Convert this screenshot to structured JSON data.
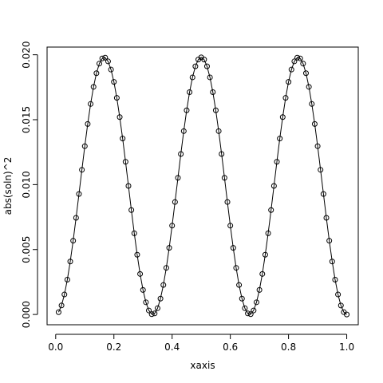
{
  "chart_data": {
    "type": "line-points",
    "x_label": "xaxis",
    "y_label": "abs(soln)^2",
    "color": "#000000",
    "x": [
      0.01,
      0.02,
      0.03,
      0.04,
      0.05,
      0.06,
      0.07,
      0.08,
      0.09,
      0.1,
      0.11,
      0.12,
      0.13,
      0.14,
      0.15,
      0.16,
      0.17,
      0.18,
      0.19,
      0.2,
      0.21,
      0.22,
      0.23,
      0.24,
      0.25,
      0.26,
      0.27,
      0.28,
      0.29,
      0.3,
      0.31,
      0.32,
      0.33,
      0.34,
      0.35,
      0.36,
      0.37,
      0.38,
      0.39,
      0.4,
      0.41,
      0.42,
      0.43,
      0.44,
      0.45,
      0.46,
      0.47,
      0.48,
      0.49,
      0.5,
      0.51,
      0.52,
      0.53,
      0.54,
      0.55,
      0.56,
      0.57,
      0.58,
      0.59,
      0.6,
      0.61,
      0.62,
      0.63,
      0.64,
      0.65,
      0.66,
      0.67,
      0.68,
      0.69,
      0.7,
      0.71,
      0.72,
      0.73,
      0.74,
      0.75,
      0.76,
      0.77,
      0.78,
      0.79,
      0.8,
      0.81,
      0.82,
      0.83,
      0.84,
      0.85,
      0.86,
      0.87,
      0.88,
      0.89,
      0.9,
      0.91,
      0.92,
      0.93,
      0.94,
      0.95,
      0.96,
      0.97,
      0.98,
      0.99,
      1.0
    ],
    "values": [
      0.000175,
      0.000695,
      0.00154,
      0.00268,
      0.00408,
      0.00568,
      0.00744,
      0.00928,
      0.01114,
      0.01296,
      0.01467,
      0.01621,
      0.01753,
      0.01858,
      0.01932,
      0.01972,
      0.01978,
      0.01949,
      0.01886,
      0.01791,
      0.01668,
      0.0152,
      0.01355,
      0.01176,
      0.0099,
      0.00804,
      0.00625,
      0.0046,
      0.00312,
      0.00189,
      0.00094,
      0.00031,
      2e-05,
      8e-05,
      0.00048,
      0.00122,
      0.00227,
      0.00359,
      0.00513,
      0.00684,
      0.00866,
      0.01052,
      0.01236,
      0.01412,
      0.01572,
      0.01712,
      0.01826,
      0.01911,
      0.01963,
      0.0198,
      0.01963,
      0.01911,
      0.01826,
      0.01712,
      0.01572,
      0.01412,
      0.01236,
      0.01052,
      0.00866,
      0.00684,
      0.00513,
      0.00359,
      0.00227,
      0.00122,
      0.00048,
      8e-05,
      2e-05,
      0.00031,
      0.00094,
      0.00189,
      0.00312,
      0.0046,
      0.00625,
      0.00804,
      0.0099,
      0.01176,
      0.01355,
      0.0152,
      0.01668,
      0.01791,
      0.01886,
      0.01949,
      0.01978,
      0.01972,
      0.01932,
      0.01858,
      0.01753,
      0.01621,
      0.01467,
      0.01296,
      0.01114,
      0.00928,
      0.00744,
      0.00568,
      0.00408,
      0.00268,
      0.00154,
      0.00069,
      0.00018,
      0.0
    ],
    "xlim": [
      -0.0296,
      1.0396
    ],
    "ylim": [
      -0.000792,
      0.020592
    ],
    "xticks": [
      {
        "value": 0,
        "label": "0.0"
      },
      {
        "value": 0.2,
        "label": "0.2"
      },
      {
        "value": 0.4,
        "label": "0.4"
      },
      {
        "value": 0.6,
        "label": "0.6"
      },
      {
        "value": 0.8,
        "label": "0.8"
      },
      {
        "value": 1,
        "label": "1.0"
      }
    ],
    "yticks": [
      {
        "value": 0,
        "label": "0.000"
      },
      {
        "value": 0.005,
        "label": "0.005"
      },
      {
        "value": 0.01,
        "label": "0.010"
      },
      {
        "value": 0.015,
        "label": "0.015"
      },
      {
        "value": 0.02,
        "label": "0.020"
      }
    ]
  }
}
